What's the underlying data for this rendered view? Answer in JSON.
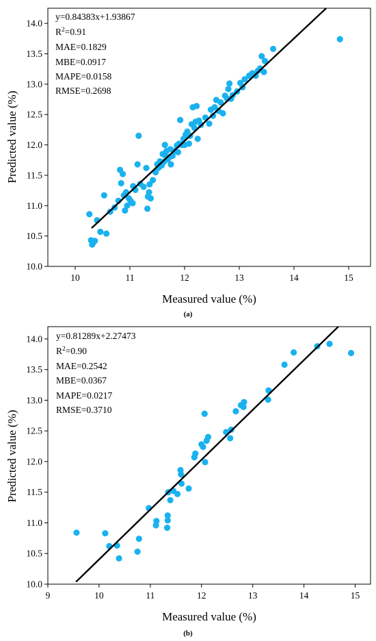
{
  "chart_data": [
    {
      "type": "scatter",
      "panel_label": "(a)",
      "xlabel": "Measured value (%)",
      "ylabel": "Predicted value (%)",
      "xlim": [
        9.5,
        15.4
      ],
      "ylim": [
        10.0,
        14.25
      ],
      "xticks": [
        10,
        11,
        12,
        13,
        14,
        15
      ],
      "yticks": [
        10.0,
        10.5,
        11.0,
        11.5,
        12.0,
        12.5,
        13.0,
        13.5,
        14.0
      ],
      "xtick_labels": [
        "10",
        "11",
        "12",
        "13",
        "14",
        "15"
      ],
      "ytick_labels": [
        "10.0",
        "10.5",
        "11.0",
        "11.5",
        "12.0",
        "12.5",
        "13.0",
        "13.5",
        "14.0"
      ],
      "grid": false,
      "point_color": "#1ab2ee",
      "line_color": "#000000",
      "fit_line": {
        "slope": 0.84383,
        "intercept": 1.93867,
        "x_range": [
          10.3,
          14.6
        ]
      },
      "stats": {
        "equation": "y=0.84383x+1.93867",
        "r2_base": "R",
        "r2_sup": "2",
        "r2_value": "=0.91",
        "mae": "MAE=0.1829",
        "mbe": "MBE=0.0917",
        "mape": "MAPE=0.0158",
        "rmse": "RMSE=0.2698"
      },
      "points": [
        [
          10.26,
          10.86
        ],
        [
          10.29,
          10.43
        ],
        [
          10.31,
          10.36
        ],
        [
          10.33,
          10.39
        ],
        [
          10.36,
          10.42
        ],
        [
          10.4,
          10.76
        ],
        [
          10.46,
          10.57
        ],
        [
          10.53,
          11.17
        ],
        [
          10.57,
          10.54
        ],
        [
          10.64,
          10.9
        ],
        [
          10.72,
          10.97
        ],
        [
          10.79,
          11.08
        ],
        [
          10.82,
          11.59
        ],
        [
          10.84,
          11.37
        ],
        [
          10.87,
          11.52
        ],
        [
          10.89,
          11.17
        ],
        [
          10.91,
          10.92
        ],
        [
          10.93,
          11.22
        ],
        [
          10.95,
          11.0
        ],
        [
          10.98,
          11.12
        ],
        [
          11.01,
          11.08
        ],
        [
          11.05,
          11.04
        ],
        [
          11.06,
          11.32
        ],
        [
          11.1,
          11.26
        ],
        [
          11.14,
          11.68
        ],
        [
          11.16,
          12.15
        ],
        [
          11.19,
          11.36
        ],
        [
          11.25,
          11.31
        ],
        [
          11.3,
          11.62
        ],
        [
          11.32,
          10.95
        ],
        [
          11.33,
          11.15
        ],
        [
          11.35,
          11.22
        ],
        [
          11.36,
          11.35
        ],
        [
          11.38,
          11.12
        ],
        [
          11.42,
          11.42
        ],
        [
          11.47,
          11.55
        ],
        [
          11.5,
          11.68
        ],
        [
          11.52,
          11.62
        ],
        [
          11.55,
          11.73
        ],
        [
          11.58,
          11.66
        ],
        [
          11.6,
          11.85
        ],
        [
          11.62,
          11.72
        ],
        [
          11.64,
          12.0
        ],
        [
          11.65,
          11.82
        ],
        [
          11.67,
          11.9
        ],
        [
          11.69,
          11.76
        ],
        [
          11.72,
          11.8
        ],
        [
          11.74,
          11.93
        ],
        [
          11.75,
          11.68
        ],
        [
          11.78,
          11.82
        ],
        [
          11.82,
          11.9
        ],
        [
          11.86,
          11.99
        ],
        [
          11.88,
          11.88
        ],
        [
          11.9,
          12.02
        ],
        [
          11.92,
          12.41
        ],
        [
          11.95,
          12.0
        ],
        [
          11.98,
          12.1
        ],
        [
          12.0,
          12.0
        ],
        [
          12.02,
          12.17
        ],
        [
          12.05,
          12.22
        ],
        [
          12.08,
          12.02
        ],
        [
          12.1,
          12.15
        ],
        [
          12.13,
          12.34
        ],
        [
          12.15,
          12.62
        ],
        [
          12.18,
          12.28
        ],
        [
          12.2,
          12.38
        ],
        [
          12.22,
          12.64
        ],
        [
          12.24,
          12.1
        ],
        [
          12.26,
          12.4
        ],
        [
          12.3,
          12.33
        ],
        [
          12.38,
          12.45
        ],
        [
          12.45,
          12.35
        ],
        [
          12.48,
          12.58
        ],
        [
          12.52,
          12.48
        ],
        [
          12.55,
          12.62
        ],
        [
          12.58,
          12.74
        ],
        [
          12.62,
          12.56
        ],
        [
          12.66,
          12.7
        ],
        [
          12.7,
          12.52
        ],
        [
          12.74,
          12.81
        ],
        [
          12.78,
          12.76
        ],
        [
          12.8,
          12.92
        ],
        [
          12.82,
          13.01
        ],
        [
          12.85,
          12.76
        ],
        [
          12.88,
          12.82
        ],
        [
          12.96,
          12.88
        ],
        [
          13.02,
          13.02
        ],
        [
          13.06,
          12.95
        ],
        [
          13.1,
          13.08
        ],
        [
          13.18,
          13.14
        ],
        [
          13.24,
          13.18
        ],
        [
          13.3,
          13.14
        ],
        [
          13.34,
          13.22
        ],
        [
          13.38,
          13.26
        ],
        [
          13.41,
          13.46
        ],
        [
          13.45,
          13.2
        ],
        [
          13.47,
          13.38
        ],
        [
          13.62,
          13.58
        ],
        [
          14.84,
          13.74
        ]
      ]
    },
    {
      "type": "scatter",
      "panel_label": "(b)",
      "xlabel": "Measured value (%)",
      "ylabel": "Predicted value (%)",
      "xlim": [
        9.0,
        15.3
      ],
      "ylim": [
        10.0,
        14.2
      ],
      "xticks": [
        9,
        10,
        11,
        12,
        13,
        14,
        15
      ],
      "yticks": [
        10.0,
        10.5,
        11.0,
        11.5,
        12.0,
        12.5,
        13.0,
        13.5,
        14.0
      ],
      "xtick_labels": [
        "9",
        "10",
        "11",
        "12",
        "13",
        "14",
        "15"
      ],
      "ytick_labels": [
        "10.0",
        "10.5",
        "11.0",
        "11.5",
        "12.0",
        "12.5",
        "13.0",
        "13.5",
        "14.0"
      ],
      "grid": false,
      "point_color": "#1ab2ee",
      "line_color": "#000000",
      "fit_line": {
        "slope": 0.81289,
        "intercept": 2.27473,
        "x_range": [
          9.55,
          14.7
        ]
      },
      "stats": {
        "equation": "y=0.81289x+2.27473",
        "r2_base": "R",
        "r2_sup": "2",
        "r2_value": "=0.90",
        "mae": "MAE=0.2542",
        "mbe": "MBE=0.0367",
        "mape": "MAPE=0.0217",
        "rmse": "RMSE=0.3710"
      },
      "points": [
        [
          9.56,
          10.84
        ],
        [
          10.12,
          10.83
        ],
        [
          10.2,
          10.62
        ],
        [
          10.35,
          10.63
        ],
        [
          10.39,
          10.42
        ],
        [
          10.75,
          10.53
        ],
        [
          10.78,
          10.74
        ],
        [
          10.97,
          11.24
        ],
        [
          11.11,
          10.96
        ],
        [
          11.12,
          11.03
        ],
        [
          11.33,
          10.92
        ],
        [
          11.34,
          11.04
        ],
        [
          11.34,
          11.12
        ],
        [
          11.35,
          11.5
        ],
        [
          11.39,
          11.37
        ],
        [
          11.45,
          11.52
        ],
        [
          11.53,
          11.47
        ],
        [
          11.59,
          11.86
        ],
        [
          11.6,
          11.79
        ],
        [
          11.61,
          11.64
        ],
        [
          11.75,
          11.56
        ],
        [
          11.86,
          12.07
        ],
        [
          11.88,
          12.13
        ],
        [
          12.0,
          12.28
        ],
        [
          12.03,
          12.24
        ],
        [
          12.06,
          12.78
        ],
        [
          12.07,
          11.99
        ],
        [
          12.1,
          12.34
        ],
        [
          12.13,
          12.4
        ],
        [
          12.48,
          12.48
        ],
        [
          12.56,
          12.38
        ],
        [
          12.58,
          12.52
        ],
        [
          12.67,
          12.82
        ],
        [
          12.77,
          12.92
        ],
        [
          12.82,
          12.89
        ],
        [
          12.83,
          12.97
        ],
        [
          13.3,
          13.01
        ],
        [
          13.31,
          13.16
        ],
        [
          13.62,
          13.58
        ],
        [
          13.8,
          13.78
        ],
        [
          14.26,
          13.88
        ],
        [
          14.5,
          13.92
        ],
        [
          14.92,
          13.77
        ]
      ]
    }
  ]
}
